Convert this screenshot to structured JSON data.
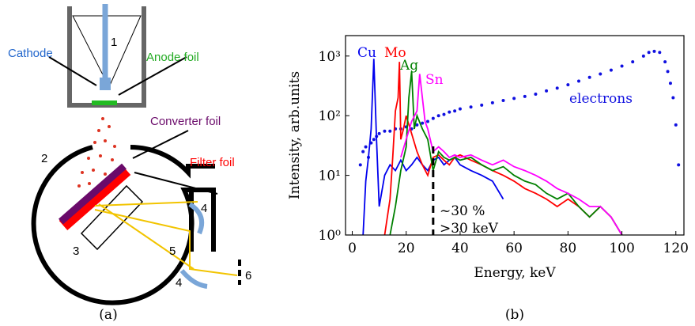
{
  "diagram": {
    "labels": {
      "cathode": "Cathode",
      "anode": "Anode foil",
      "converter": "Converter foil",
      "filter": "Filter foil",
      "n1": "1",
      "n2": "2",
      "n3": "3",
      "n4a": "4",
      "n4b": "4",
      "n5": "5",
      "n6": "6"
    },
    "caption": "(a)"
  },
  "chart_data": {
    "type": "line",
    "caption": "(b)",
    "x_label": "Energy, keV",
    "y_label": "Intensity, arb.units",
    "log_y": true,
    "xlim": [
      -2.5,
      123
    ],
    "ylim": [
      1,
      2200
    ],
    "xticks": [
      0,
      20,
      40,
      60,
      80,
      100,
      120
    ],
    "yticks": [
      {
        "value": 1,
        "label": "10⁰"
      },
      {
        "value": 10,
        "label": "10¹"
      },
      {
        "value": 100,
        "label": "10²"
      },
      {
        "value": 1000,
        "label": "10³"
      }
    ],
    "marker_line": {
      "x": 30,
      "labels": [
        "~30 %",
        ">30 keV"
      ]
    },
    "series": [
      {
        "name": "electrons",
        "color": "#1010e0",
        "mode": "dots",
        "x": [
          3,
          4,
          5,
          6,
          7,
          8,
          9,
          10,
          12,
          14,
          16,
          18,
          20,
          22,
          24,
          26,
          28,
          30,
          32,
          34,
          36,
          38,
          40,
          44,
          48,
          52,
          56,
          60,
          64,
          68,
          72,
          76,
          80,
          84,
          88,
          92,
          96,
          100,
          104,
          108,
          110,
          112,
          114,
          116,
          117,
          118,
          119,
          120,
          121
        ],
        "values": [
          15,
          25,
          30,
          20,
          35,
          40,
          45,
          50,
          55,
          55,
          60,
          60,
          65,
          60,
          70,
          75,
          80,
          90,
          100,
          105,
          115,
          120,
          130,
          140,
          150,
          165,
          180,
          195,
          210,
          230,
          260,
          290,
          330,
          380,
          440,
          500,
          580,
          680,
          800,
          1000,
          1150,
          1200,
          1150,
          800,
          550,
          350,
          200,
          70,
          15
        ]
      },
      {
        "name": "Cu",
        "color": "#0000ee",
        "mode": "line",
        "x": [
          4,
          5,
          6,
          7,
          8,
          9,
          10,
          12,
          14,
          16,
          18,
          20,
          22,
          24,
          26,
          28,
          30,
          32,
          34,
          36,
          38,
          40,
          44,
          48,
          52,
          56
        ],
        "values": [
          1,
          8,
          20,
          60,
          900,
          40,
          3,
          10,
          15,
          12,
          18,
          12,
          15,
          20,
          15,
          12,
          18,
          20,
          15,
          18,
          20,
          15,
          12,
          10,
          8,
          4
        ]
      },
      {
        "name": "Mo",
        "color": "#ff0000",
        "mode": "line",
        "x": [
          12,
          14,
          15,
          16,
          17,
          17.5,
          18,
          19,
          20,
          22,
          24,
          26,
          28,
          30,
          32,
          34,
          36,
          38,
          40,
          44,
          48,
          52,
          56,
          60,
          64,
          68,
          72,
          76,
          80,
          84,
          88,
          92,
          96,
          100
        ],
        "values": [
          1,
          4,
          20,
          120,
          200,
          800,
          40,
          60,
          100,
          50,
          25,
          15,
          10,
          20,
          22,
          18,
          15,
          20,
          22,
          18,
          15,
          12,
          10,
          8,
          6,
          5,
          4,
          3,
          4,
          3,
          2,
          3,
          2,
          1
        ]
      },
      {
        "name": "Ag",
        "color": "#008000",
        "mode": "line",
        "x": [
          14,
          16,
          18,
          20,
          21,
          22,
          23,
          24,
          26,
          28,
          30,
          32,
          34,
          36,
          38,
          40,
          44,
          48,
          52,
          56,
          60,
          64,
          68,
          72,
          76,
          80,
          84,
          88,
          92,
          96,
          100
        ],
        "values": [
          1,
          3,
          12,
          30,
          200,
          550,
          60,
          100,
          60,
          40,
          12,
          25,
          20,
          18,
          20,
          18,
          20,
          15,
          12,
          14,
          10,
          8,
          7,
          5,
          4,
          5,
          3,
          2,
          3,
          2,
          1
        ]
      },
      {
        "name": "Sn",
        "color": "#ff00ff",
        "mode": "line",
        "x": [
          18,
          20,
          22,
          24,
          25,
          26,
          27,
          28,
          30,
          32,
          34,
          36,
          38,
          40,
          44,
          48,
          52,
          56,
          60,
          64,
          68,
          72,
          76,
          80,
          84,
          88,
          92,
          96,
          100
        ],
        "values": [
          20,
          40,
          80,
          120,
          500,
          200,
          80,
          60,
          25,
          30,
          25,
          20,
          22,
          20,
          22,
          18,
          15,
          18,
          14,
          12,
          10,
          8,
          6,
          5,
          4,
          3,
          3,
          2,
          1
        ]
      }
    ]
  }
}
